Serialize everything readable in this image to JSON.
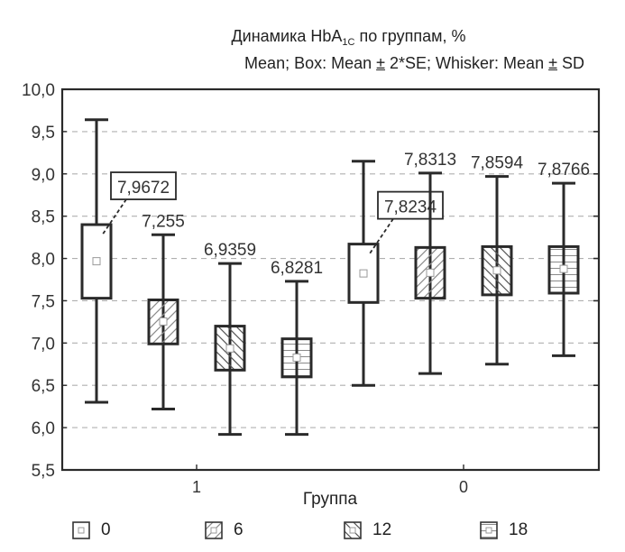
{
  "title": {
    "prefix": "Динамика HbA",
    "sub": "1C",
    "suffix": " по группам, %",
    "line2_a": "Mean; Box: Mean ",
    "pm1": "±",
    "line2_b": " 2*SE; Whisker: Mean ",
    "pm2": "±",
    "line2_c": " SD"
  },
  "axis": {
    "xlabel": "Группа",
    "y_ticks": [
      "10,0",
      "9,5",
      "9,0",
      "8,5",
      "8,0",
      "7,5",
      "7,0",
      "6,5",
      "6,0",
      "5,5"
    ],
    "x_ticks": [
      "1",
      "0"
    ]
  },
  "legend": [
    {
      "label": "0",
      "pattern": "none"
    },
    {
      "label": "6",
      "pattern": "diag-up"
    },
    {
      "label": "12",
      "pattern": "diag-down"
    },
    {
      "label": "18",
      "pattern": "horizontal"
    }
  ],
  "colors": {
    "line": "#2a2a2a",
    "grid": "#b0b0b0",
    "hatch": "#8a8a8a"
  },
  "chart_data": {
    "type": "box",
    "title": "Динамика HbA1C по группам, %",
    "subtitle": "Mean; Box: Mean ± 2*SE; Whisker: Mean ± SD",
    "xlabel": "Группа",
    "ylabel": "",
    "ylim": [
      5.5,
      10.0
    ],
    "y_tick_step": 0.5,
    "grid": true,
    "legend_position": "bottom",
    "categories": [
      "1",
      "0"
    ],
    "series_names": [
      "0",
      "6",
      "12",
      "18"
    ],
    "boxes": [
      {
        "group": "1",
        "series": "0",
        "mean": 7.9672,
        "box_low": 7.53,
        "box_high": 8.4,
        "whisker_low": 6.3,
        "whisker_high": 9.64,
        "label": "7,9672",
        "label_boxed": true
      },
      {
        "group": "1",
        "series": "6",
        "mean": 7.255,
        "box_low": 6.99,
        "box_high": 7.51,
        "whisker_low": 6.22,
        "whisker_high": 8.28,
        "label": "7,255",
        "label_boxed": false
      },
      {
        "group": "1",
        "series": "12",
        "mean": 6.9359,
        "box_low": 6.68,
        "box_high": 7.2,
        "whisker_low": 5.92,
        "whisker_high": 7.94,
        "label": "6,9359",
        "label_boxed": false
      },
      {
        "group": "1",
        "series": "18",
        "mean": 6.8281,
        "box_low": 6.6,
        "box_high": 7.05,
        "whisker_low": 5.92,
        "whisker_high": 7.73,
        "label": "6,8281",
        "label_boxed": false
      },
      {
        "group": "0",
        "series": "0",
        "mean": 7.8234,
        "box_low": 7.48,
        "box_high": 8.17,
        "whisker_low": 6.5,
        "whisker_high": 9.15,
        "label": "7,8234",
        "label_boxed": true
      },
      {
        "group": "0",
        "series": "6",
        "mean": 7.8313,
        "box_low": 7.53,
        "box_high": 8.13,
        "whisker_low": 6.64,
        "whisker_high": 9.01,
        "label": "7,8313",
        "label_boxed": false
      },
      {
        "group": "0",
        "series": "12",
        "mean": 7.8594,
        "box_low": 7.57,
        "box_high": 8.14,
        "whisker_low": 6.75,
        "whisker_high": 8.97,
        "label": "7,8594",
        "label_boxed": false
      },
      {
        "group": "0",
        "series": "18",
        "mean": 7.8766,
        "box_low": 7.59,
        "box_high": 8.14,
        "whisker_low": 6.85,
        "whisker_high": 8.89,
        "label": "7,8766",
        "label_boxed": false
      }
    ]
  }
}
